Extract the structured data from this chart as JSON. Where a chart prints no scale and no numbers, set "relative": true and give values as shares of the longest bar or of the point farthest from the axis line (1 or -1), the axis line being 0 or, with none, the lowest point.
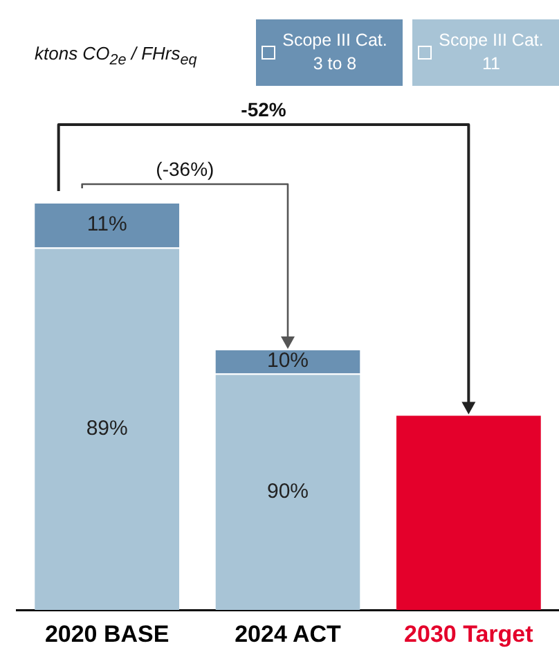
{
  "chart_data": {
    "type": "bar",
    "stacked": true,
    "relative": true,
    "categories": [
      "2020 BASE",
      "2024 ACT",
      "2030 Target"
    ],
    "series": [
      {
        "name": "Scope III Cat. 11",
        "color": "#a8c4d6",
        "values": [
          0.889,
          0.58,
          null
        ]
      },
      {
        "name": "Scope III Cat. 3 to 8",
        "color": "#6a91b3",
        "values": [
          0.111,
          0.06,
          null
        ]
      },
      {
        "color": "#e4002b",
        "values": [
          null,
          null,
          0.48
        ]
      }
    ],
    "annotations": [
      "ktons CO$_{2e}$ / FHrs$_{eq}$",
      "-52%",
      "(-36%)",
      "89%",
      "90%",
      "11%",
      "10%"
    ],
    "legend": "top right",
    "grid": false
  }
}
